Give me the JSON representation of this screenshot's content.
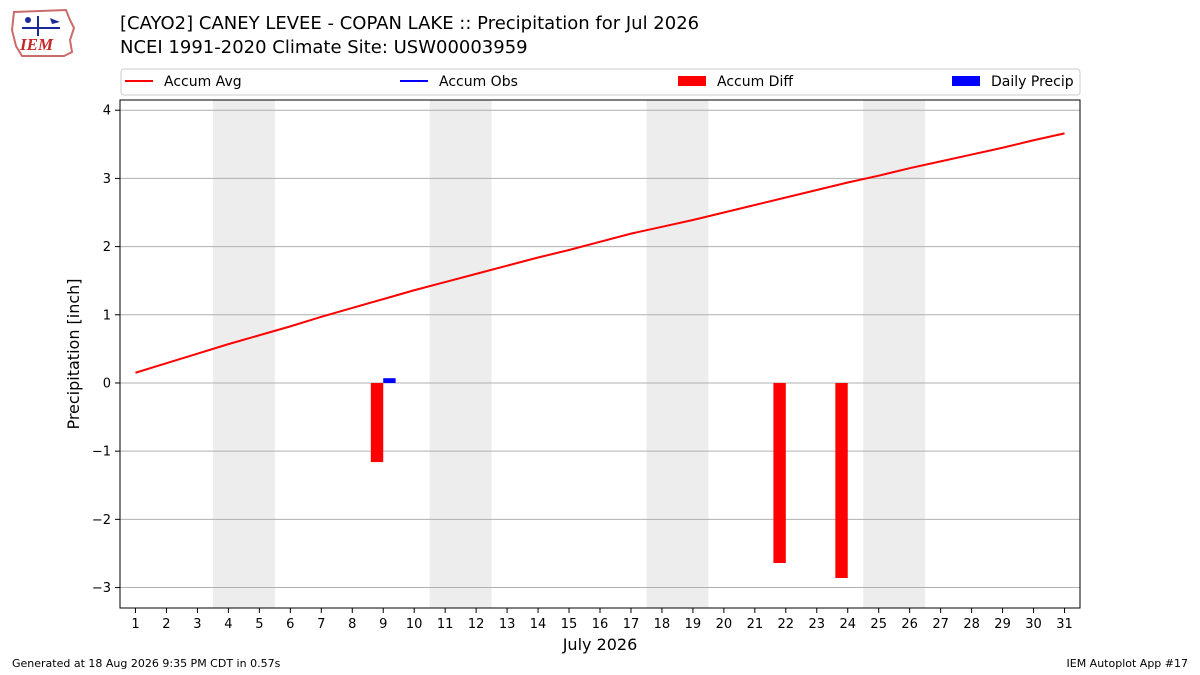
{
  "header": {
    "title_line1": "[CAYO2] CANEY LEVEE - COPAN LAKE :: Precipitation for Jul 2026",
    "title_line2": "NCEI 1991-2020 Climate Site: USW00003959"
  },
  "logo": {
    "text": "IEM"
  },
  "footer": {
    "left": "Generated at 18 Aug 2026 9:35 PM CDT in 0.57s",
    "right": "IEM Autoplot App #17"
  },
  "chart_data": {
    "type": "bar",
    "xlabel": "July 2026",
    "ylabel": "Precipitation [inch]",
    "xlim": [
      0.5,
      31.5
    ],
    "ylim": [
      -3.3,
      4.15
    ],
    "yticks": [
      -3,
      -2,
      -1,
      0,
      1,
      2,
      3,
      4
    ],
    "categories": [
      1,
      2,
      3,
      4,
      5,
      6,
      7,
      8,
      9,
      10,
      11,
      12,
      13,
      14,
      15,
      16,
      17,
      18,
      19,
      20,
      21,
      22,
      23,
      24,
      25,
      26,
      27,
      28,
      29,
      30,
      31
    ],
    "grid": "horizontal",
    "weekend_shading": [
      [
        3.5,
        5.5
      ],
      [
        10.5,
        12.5
      ],
      [
        17.5,
        19.5
      ],
      [
        24.5,
        26.5
      ]
    ],
    "legend": [
      {
        "label": "Accum Avg",
        "kind": "line",
        "color": "#ff0000"
      },
      {
        "label": "Accum Obs",
        "kind": "line",
        "color": "#0000ff"
      },
      {
        "label": "Accum Diff",
        "kind": "bar",
        "color": "#ff0000"
      },
      {
        "label": "Daily Precip",
        "kind": "bar",
        "color": "#0000ff"
      }
    ],
    "legend_position": "top",
    "series": [
      {
        "name": "Accum Avg",
        "kind": "line",
        "color": "#ff0000",
        "x": [
          1,
          2,
          3,
          4,
          5,
          6,
          7,
          8,
          9,
          10,
          11,
          12,
          13,
          14,
          15,
          16,
          17,
          18,
          19,
          20,
          21,
          22,
          23,
          24,
          25,
          26,
          27,
          28,
          29,
          30,
          31
        ],
        "values": [
          0.15,
          0.29,
          0.43,
          0.57,
          0.7,
          0.83,
          0.97,
          1.1,
          1.23,
          1.36,
          1.48,
          1.6,
          1.72,
          1.84,
          1.95,
          2.07,
          2.19,
          2.29,
          2.39,
          2.5,
          2.61,
          2.72,
          2.83,
          2.94,
          3.04,
          3.15,
          3.25,
          3.35,
          3.45,
          3.56,
          3.66
        ]
      },
      {
        "name": "Accum Diff",
        "kind": "bar",
        "color": "#ff0000",
        "offset": -0.2,
        "x": [
          9,
          22,
          24
        ],
        "values": [
          -1.16,
          -2.64,
          -2.86
        ]
      },
      {
        "name": "Daily Precip",
        "kind": "bar",
        "color": "#0000ff",
        "offset": 0.2,
        "x": [
          9
        ],
        "values": [
          0.07
        ]
      }
    ]
  }
}
